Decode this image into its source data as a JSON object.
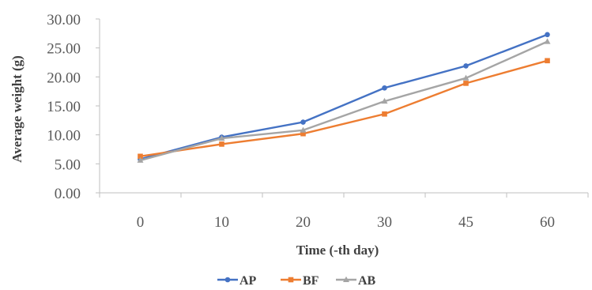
{
  "chart_data": {
    "type": "line",
    "title": "",
    "xlabel": "Time (-th day)",
    "ylabel": "Average weight (g)",
    "categories": [
      "0",
      "10",
      "20",
      "30",
      "45",
      "60"
    ],
    "y_ticks": [
      "0.00",
      "5.00",
      "10.00",
      "15.00",
      "20.00",
      "25.00",
      "30.00"
    ],
    "ylim": [
      0,
      30
    ],
    "grid": false,
    "legend_position": "bottom",
    "series": [
      {
        "name": "AP",
        "color": "#4472C4",
        "marker": "circle",
        "values": [
          5.8,
          9.6,
          12.2,
          18.1,
          21.9,
          27.3
        ]
      },
      {
        "name": "BF",
        "color": "#ED7D31",
        "marker": "square",
        "values": [
          6.3,
          8.4,
          10.2,
          13.6,
          18.9,
          22.8
        ]
      },
      {
        "name": "AB",
        "color": "#A5A5A5",
        "marker": "triangle",
        "values": [
          5.6,
          9.4,
          10.8,
          15.8,
          19.8,
          26.1
        ]
      }
    ]
  }
}
